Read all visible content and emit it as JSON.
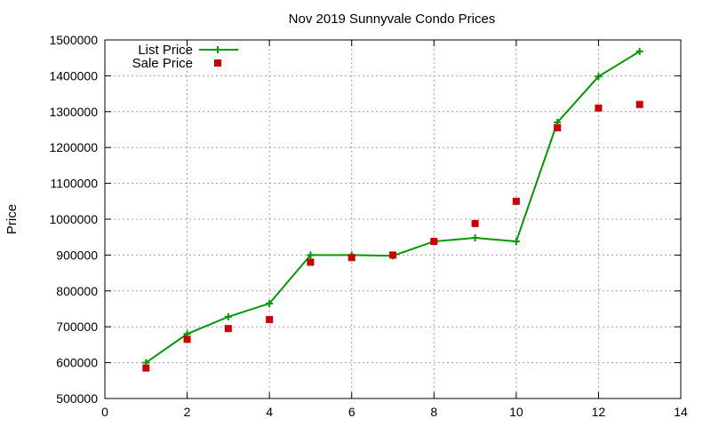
{
  "chart_data": {
    "type": "line",
    "title": "Nov 2019 Sunnyvale Condo Prices",
    "xlabel": "",
    "ylabel": "Price",
    "xlim": [
      0,
      14
    ],
    "ylim": [
      500000,
      1500000
    ],
    "x_ticks": [
      0,
      2,
      4,
      6,
      8,
      10,
      12,
      14
    ],
    "y_ticks": [
      500000,
      600000,
      700000,
      800000,
      900000,
      1000000,
      1100000,
      1200000,
      1300000,
      1400000,
      1500000
    ],
    "x_tick_labels": [
      "0",
      "2",
      "4",
      "6",
      "8",
      "10",
      "12",
      "14"
    ],
    "y_tick_labels": [
      "500000",
      "600000",
      "700000",
      "800000",
      "900000",
      "1000000",
      "1100000",
      "1200000",
      "1300000",
      "1400000",
      "1500000"
    ],
    "grid": true,
    "legend_position": "top-left",
    "series": [
      {
        "name": "List Price",
        "style": "line-with-plus-markers",
        "color": "#009900",
        "x": [
          1,
          2,
          3,
          4,
          5,
          6,
          7,
          8,
          9,
          10,
          11,
          12,
          13
        ],
        "y": [
          600000,
          680000,
          728000,
          765000,
          900000,
          900000,
          898000,
          938000,
          948000,
          938000,
          1270000,
          1398000,
          1468000
        ]
      },
      {
        "name": "Sale Price",
        "style": "square-markers",
        "color": "#cc0000",
        "x": [
          1,
          2,
          3,
          4,
          5,
          6,
          7,
          8,
          9,
          10,
          11,
          12,
          13
        ],
        "y": [
          585000,
          665000,
          695000,
          720000,
          880000,
          893000,
          900000,
          938000,
          988000,
          1050000,
          1255000,
          1310000,
          1320000
        ]
      }
    ]
  }
}
